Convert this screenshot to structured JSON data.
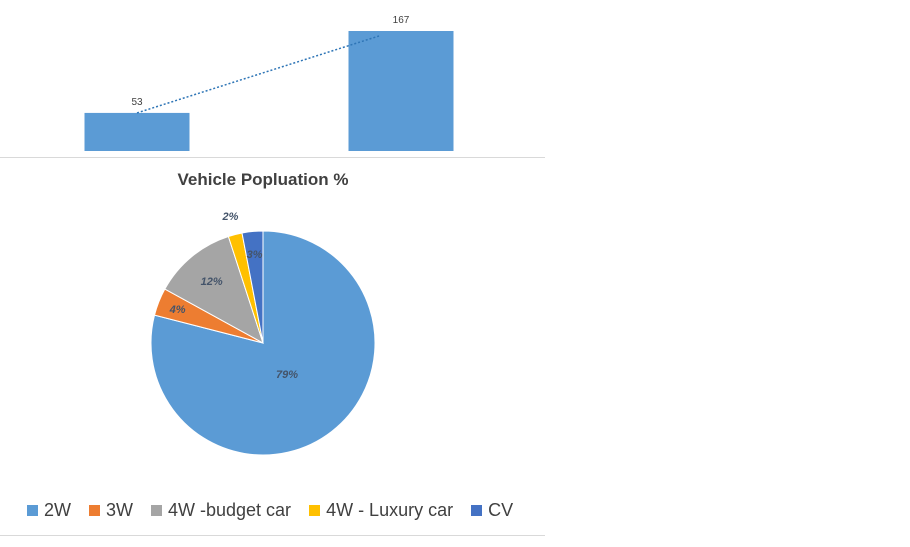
{
  "chart_data": [
    {
      "type": "bar",
      "title": "",
      "categories": [
        "",
        ""
      ],
      "values": [
        53,
        167
      ],
      "data_labels": [
        "53",
        "167"
      ],
      "trendline": "linear (dotted)",
      "ylim": [
        0,
        180
      ],
      "grid": false,
      "colors": {
        "bar": "#5b9bd5",
        "trend": "#2e75b6"
      }
    },
    {
      "type": "pie",
      "title": "Vehicle Popluation %",
      "labels": [
        "2W",
        "3W",
        "4W -budget car",
        "4W - Luxury car",
        "CV"
      ],
      "values": [
        79,
        4,
        12,
        2,
        3
      ],
      "data_labels": [
        "79%",
        "4%",
        "12%",
        "2%",
        "3%"
      ],
      "colors": [
        "#5b9bd5",
        "#ed7d31",
        "#a5a5a5",
        "#ffc000",
        "#4472c4"
      ],
      "legend": "bottom"
    }
  ]
}
